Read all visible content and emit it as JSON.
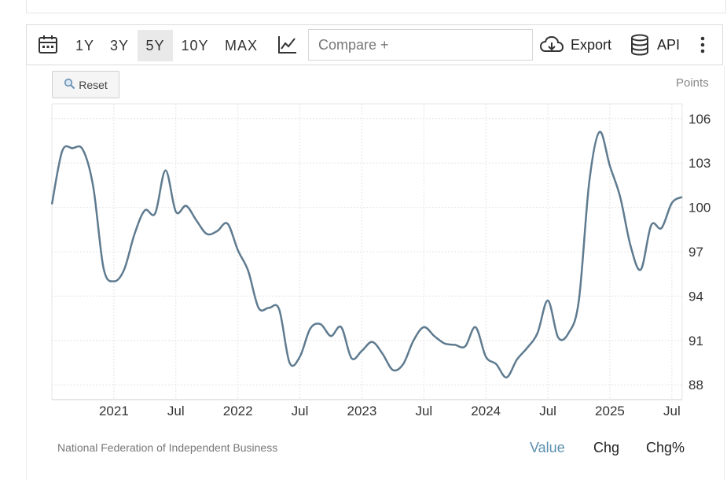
{
  "toolbar": {
    "ranges": [
      "1Y",
      "3Y",
      "5Y",
      "10Y",
      "MAX"
    ],
    "active_range": "5Y",
    "compare_placeholder": "Compare +",
    "export_label": "Export",
    "api_label": "API"
  },
  "reset_label": "Reset",
  "source": "National Federation of Independent Business",
  "footer_tabs": [
    "Value",
    "Chg",
    "Chg%"
  ],
  "active_tab": "Value",
  "colors": {
    "line": "#5f7b90",
    "active_tab": "#5a8fb0",
    "grid": "#e4e4e4"
  },
  "chart_data": {
    "type": "line",
    "title": "",
    "unit_label": "Points",
    "ylim": [
      87,
      107
    ],
    "yticks": [
      106,
      103,
      100,
      97,
      94,
      91,
      88
    ],
    "xlim": [
      "2020-07",
      "2025-08"
    ],
    "xticks": [
      {
        "label": "2021",
        "date": "2021-01"
      },
      {
        "label": "Jul",
        "date": "2021-07"
      },
      {
        "label": "2022",
        "date": "2022-01"
      },
      {
        "label": "Jul",
        "date": "2022-07"
      },
      {
        "label": "2023",
        "date": "2023-01"
      },
      {
        "label": "Jul",
        "date": "2023-07"
      },
      {
        "label": "2024",
        "date": "2024-01"
      },
      {
        "label": "Jul",
        "date": "2024-07"
      },
      {
        "label": "2025",
        "date": "2025-01"
      },
      {
        "label": "Jul",
        "date": "2025-07"
      }
    ],
    "series": [
      {
        "name": "Value",
        "points": [
          [
            "2020-07",
            100.2
          ],
          [
            "2020-08",
            103.8
          ],
          [
            "2020-09",
            104.0
          ],
          [
            "2020-10",
            103.9
          ],
          [
            "2020-11",
            101.4
          ],
          [
            "2020-12",
            95.9
          ],
          [
            "2021-01",
            95.0
          ],
          [
            "2021-02",
            95.8
          ],
          [
            "2021-03",
            98.2
          ],
          [
            "2021-04",
            99.8
          ],
          [
            "2021-05",
            99.6
          ],
          [
            "2021-06",
            102.5
          ],
          [
            "2021-07",
            99.7
          ],
          [
            "2021-08",
            100.1
          ],
          [
            "2021-09",
            99.1
          ],
          [
            "2021-10",
            98.2
          ],
          [
            "2021-11",
            98.4
          ],
          [
            "2021-12",
            98.9
          ],
          [
            "2022-01",
            97.1
          ],
          [
            "2022-02",
            95.7
          ],
          [
            "2022-03",
            93.2
          ],
          [
            "2022-04",
            93.2
          ],
          [
            "2022-05",
            93.1
          ],
          [
            "2022-06",
            89.5
          ],
          [
            "2022-07",
            89.9
          ],
          [
            "2022-08",
            91.8
          ],
          [
            "2022-09",
            92.1
          ],
          [
            "2022-10",
            91.3
          ],
          [
            "2022-11",
            91.9
          ],
          [
            "2022-12",
            89.8
          ],
          [
            "2023-01",
            90.3
          ],
          [
            "2023-02",
            90.9
          ],
          [
            "2023-03",
            90.1
          ],
          [
            "2023-04",
            89.0
          ],
          [
            "2023-05",
            89.4
          ],
          [
            "2023-06",
            91.0
          ],
          [
            "2023-07",
            91.9
          ],
          [
            "2023-08",
            91.3
          ],
          [
            "2023-09",
            90.8
          ],
          [
            "2023-10",
            90.7
          ],
          [
            "2023-11",
            90.6
          ],
          [
            "2023-12",
            91.9
          ],
          [
            "2024-01",
            89.9
          ],
          [
            "2024-02",
            89.4
          ],
          [
            "2024-03",
            88.5
          ],
          [
            "2024-04",
            89.7
          ],
          [
            "2024-05",
            90.5
          ],
          [
            "2024-06",
            91.5
          ],
          [
            "2024-07",
            93.7
          ],
          [
            "2024-08",
            91.2
          ],
          [
            "2024-09",
            91.5
          ],
          [
            "2024-10",
            93.7
          ],
          [
            "2024-11",
            101.7
          ],
          [
            "2024-12",
            105.1
          ],
          [
            "2025-01",
            102.8
          ],
          [
            "2025-02",
            100.7
          ],
          [
            "2025-03",
            97.4
          ],
          [
            "2025-04",
            95.8
          ],
          [
            "2025-05",
            98.8
          ],
          [
            "2025-06",
            98.6
          ],
          [
            "2025-07",
            100.3
          ],
          [
            "2025-08",
            100.7
          ]
        ]
      }
    ]
  }
}
